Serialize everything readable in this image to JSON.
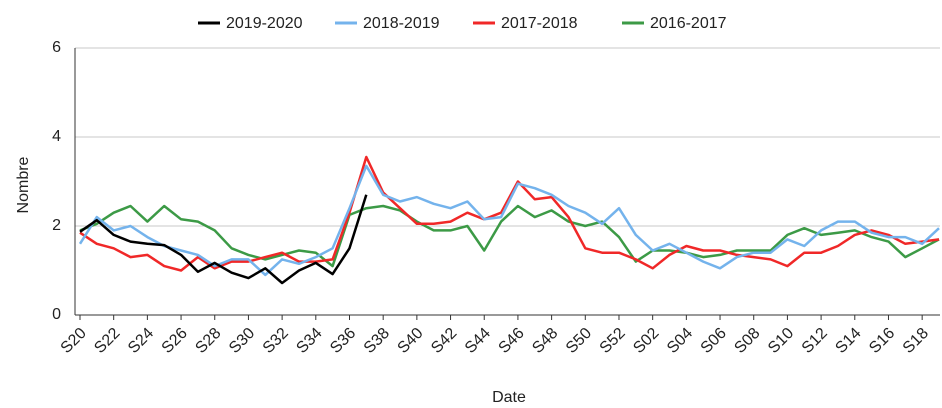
{
  "chart_data": {
    "type": "line",
    "x_label": "Date",
    "y_label": "Nombre",
    "categories": [
      "S20",
      null,
      "S22",
      null,
      "S24",
      null,
      "S26",
      null,
      "S28",
      null,
      "S30",
      null,
      "S32",
      null,
      "S34",
      null,
      "S36",
      null,
      "S38",
      null,
      "S40",
      null,
      "S42",
      null,
      "S44",
      null,
      "S46",
      null,
      "S48",
      null,
      "S50",
      null,
      "S52",
      null,
      "S02",
      null,
      "S04",
      null,
      "S06",
      null,
      "S08",
      null,
      "S10",
      null,
      "S12",
      null,
      "S14",
      null,
      "S16",
      null,
      "S18",
      null
    ],
    "ylim": [
      0,
      6
    ],
    "yticks": [
      0,
      2,
      4,
      6
    ],
    "grid": true,
    "series": [
      {
        "name": "2019-2020",
        "color": "#000000",
        "values": [
          1.87,
          2.13,
          1.8,
          1.65,
          1.6,
          1.57,
          1.35,
          0.97,
          1.17,
          0.95,
          0.83,
          1.05,
          0.72,
          1.0,
          1.17,
          0.92,
          1.5,
          2.7,
          null,
          null,
          null,
          null,
          null,
          null,
          null,
          null,
          null,
          null,
          null,
          null,
          null,
          null,
          null,
          null,
          null,
          null,
          null,
          null,
          null,
          null,
          null,
          null,
          null,
          null,
          null,
          null,
          null,
          null,
          null,
          null,
          null,
          null
        ]
      },
      {
        "name": "2018-2019",
        "color": "#74b3ec",
        "values": [
          1.6,
          2.2,
          1.9,
          2.0,
          1.75,
          1.55,
          1.45,
          1.35,
          1.1,
          1.25,
          1.25,
          0.9,
          1.25,
          1.15,
          1.3,
          1.5,
          2.4,
          3.35,
          2.7,
          2.55,
          2.65,
          2.5,
          2.4,
          2.55,
          2.15,
          2.2,
          2.95,
          2.85,
          2.7,
          2.45,
          2.3,
          2.05,
          2.4,
          1.8,
          1.45,
          1.6,
          1.4,
          1.2,
          1.05,
          1.3,
          1.4,
          1.4,
          1.7,
          1.55,
          1.9,
          2.1,
          2.1,
          1.85,
          1.75,
          1.75,
          1.6,
          1.95
        ]
      },
      {
        "name": "2017-2018",
        "color": "#f02828",
        "values": [
          1.85,
          1.6,
          1.5,
          1.3,
          1.35,
          1.1,
          1.0,
          1.3,
          1.05,
          1.2,
          1.2,
          1.3,
          1.4,
          1.2,
          1.2,
          1.25,
          2.3,
          3.55,
          2.75,
          2.4,
          2.05,
          2.05,
          2.1,
          2.3,
          2.15,
          2.3,
          3.0,
          2.6,
          2.65,
          2.2,
          1.5,
          1.4,
          1.4,
          1.25,
          1.05,
          1.35,
          1.55,
          1.45,
          1.45,
          1.35,
          1.3,
          1.25,
          1.1,
          1.4,
          1.4,
          1.55,
          1.8,
          1.9,
          1.8,
          1.6,
          1.65,
          1.7
        ]
      },
      {
        "name": "2016-2017",
        "color": "#3c9a46",
        "values": [
          1.9,
          2.05,
          2.3,
          2.45,
          2.1,
          2.45,
          2.15,
          2.1,
          1.9,
          1.5,
          1.35,
          1.25,
          1.35,
          1.45,
          1.4,
          1.1,
          2.25,
          2.4,
          2.45,
          2.35,
          2.1,
          1.9,
          1.9,
          2.0,
          1.45,
          2.1,
          2.45,
          2.2,
          2.35,
          2.1,
          2.0,
          2.1,
          1.75,
          1.2,
          1.45,
          1.45,
          1.4,
          1.3,
          1.35,
          1.45,
          1.45,
          1.45,
          1.8,
          1.95,
          1.8,
          1.85,
          1.9,
          1.75,
          1.65,
          1.3,
          1.5,
          1.7
        ]
      }
    ]
  }
}
